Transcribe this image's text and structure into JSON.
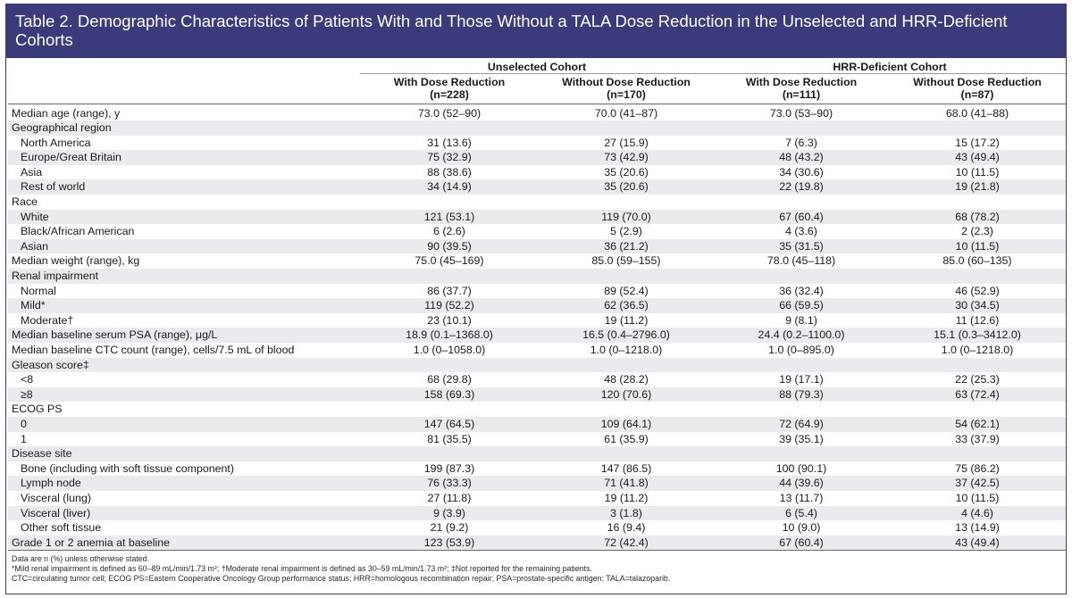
{
  "title": "Table 2. Demographic Characteristics of Patients With and Those Without a TALA Dose Reduction in the Unselected and HRR-Deficient Cohorts",
  "colors": {
    "header_bg": "#3b3a7a",
    "row_shade": "#ebebef"
  },
  "groups": [
    "Unselected Cohort",
    "HRR-Deficient Cohort"
  ],
  "columns": [
    {
      "label": "With Dose Reduction",
      "n": "(n=228)"
    },
    {
      "label": "Without Dose Reduction",
      "n": "(n=170)"
    },
    {
      "label": "With Dose Reduction",
      "n": "(n=111)"
    },
    {
      "label": "Without Dose Reduction",
      "n": "(n=87)"
    }
  ],
  "rows": [
    {
      "label": "Median age (range), y",
      "values": [
        "73.0 (52–90)",
        "70.0 (41–87)",
        "73.0 (53–90)",
        "68.0 (41–88)"
      ]
    },
    {
      "label": "Geographical region"
    },
    {
      "label": "North America",
      "values": [
        "31 (13.6)",
        "27 (15.9)",
        "7 (6.3)",
        "15 (17.2)"
      ]
    },
    {
      "label": "Europe/Great Britain",
      "values": [
        "75 (32.9)",
        "73 (42.9)",
        "48 (43.2)",
        "43 (49.4)"
      ]
    },
    {
      "label": "Asia",
      "values": [
        "88 (38.6)",
        "35 (20.6)",
        "34 (30.6)",
        "10 (11.5)"
      ]
    },
    {
      "label": "Rest of world",
      "values": [
        "34 (14.9)",
        "35 (20.6)",
        "22 (19.8)",
        "19 (21.8)"
      ]
    },
    {
      "label": "Race"
    },
    {
      "label": "White",
      "values": [
        "121 (53.1)",
        "119 (70.0)",
        "67 (60.4)",
        "68 (78.2)"
      ]
    },
    {
      "label": "Black/African American",
      "values": [
        "6 (2.6)",
        "5 (2.9)",
        "4 (3.6)",
        "2 (2.3)"
      ]
    },
    {
      "label": "Asian",
      "values": [
        "90 (39.5)",
        "36 (21.2)",
        "35 (31.5)",
        "10 (11.5)"
      ]
    },
    {
      "label": "Median weight (range), kg",
      "values": [
        "75.0 (45–169)",
        "85.0 (59–155)",
        "78.0 (45–118)",
        "85.0 (60–135)"
      ]
    },
    {
      "label": "Renal impairment"
    },
    {
      "label": "Normal",
      "values": [
        "86 (37.7)",
        "89 (52.4)",
        "36 (32.4)",
        "46 (52.9)"
      ]
    },
    {
      "label": "Mild*",
      "values": [
        "119 (52.2)",
        "62 (36.5)",
        "66 (59.5)",
        "30 (34.5)"
      ]
    },
    {
      "label": "Moderate†",
      "values": [
        "23 (10.1)",
        "19 (11.2)",
        "9 (8.1)",
        "11 (12.6)"
      ]
    },
    {
      "label": "Median baseline serum PSA (range), μg/L",
      "values": [
        "18.9 (0.1–1368.0)",
        "16.5 (0.4–2796.0)",
        "24.4 (0.2–1100.0)",
        "15.1 (0.3–3412.0)"
      ]
    },
    {
      "label": "Median baseline CTC count (range), cells/7.5 mL of blood",
      "values": [
        "1.0 (0–1058.0)",
        "1.0 (0–1218.0)",
        "1.0 (0–895.0)",
        "1.0 (0–1218.0)"
      ]
    },
    {
      "label": "Gleason score‡"
    },
    {
      "label": "<8",
      "values": [
        "68 (29.8)",
        "48 (28.2)",
        "19 (17.1)",
        "22 (25.3)"
      ]
    },
    {
      "label": "≥8",
      "values": [
        "158 (69.3)",
        "120 (70.6)",
        "88 (79.3)",
        "63 (72.4)"
      ]
    },
    {
      "label": "ECOG PS"
    },
    {
      "label": "0",
      "values": [
        "147 (64.5)",
        "109 (64.1)",
        "72 (64.9)",
        "54 (62.1)"
      ]
    },
    {
      "label": "1",
      "values": [
        "81 (35.5)",
        "61 (35.9)",
        "39 (35.1)",
        "33 (37.9)"
      ]
    },
    {
      "label": "Disease site"
    },
    {
      "label": "Bone (including with soft tissue component)",
      "values": [
        "199 (87.3)",
        "147 (86.5)",
        "100 (90.1)",
        "75 (86.2)"
      ]
    },
    {
      "label": "Lymph node",
      "values": [
        "76 (33.3)",
        "71 (41.8)",
        "44 (39.6)",
        "37 (42.5)"
      ]
    },
    {
      "label": "Visceral (lung)",
      "values": [
        "27 (11.8)",
        "19 (11.2)",
        "13 (11.7)",
        "10 (11.5)"
      ]
    },
    {
      "label": "Visceral (liver)",
      "values": [
        "9 (3.9)",
        "3 (1.8)",
        "6 (5.4)",
        "4 (4.6)"
      ]
    },
    {
      "label": "Other soft tissue",
      "values": [
        "21 (9.2)",
        "16 (9.4)",
        "10 (9.0)",
        "13 (14.9)"
      ]
    },
    {
      "label": "Grade 1 or 2 anemia at baseline",
      "values": [
        "123 (53.9)",
        "72 (42.4)",
        "67 (60.4)",
        "43 (49.4)"
      ]
    }
  ],
  "footnotes": [
    "Data are n (%) unless otherwise stated.",
    "*Mild renal impairment is defined as 60–89 mL/min/1.73 m²; †Moderate renal impairment is defined as 30–59 mL/min/1.73 m²; ‡Not reported for the remaining patients.",
    "CTC=circulating tumor cell; ECOG PS=Eastern Cooperative Oncology Group performance status; HRR=homologous recombination repair; PSA=prostate-specific antigen; TALA=talazoparib."
  ]
}
